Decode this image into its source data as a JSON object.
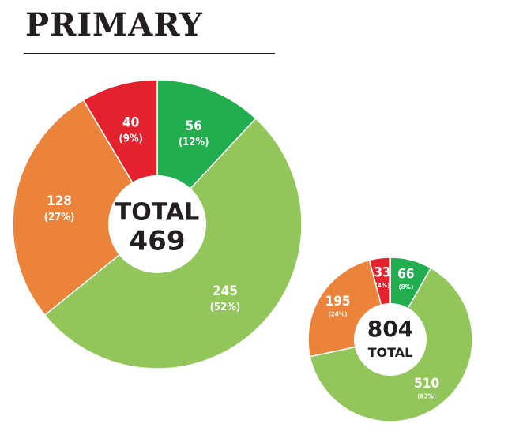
{
  "header": {
    "title": "PRIMARY"
  },
  "colors": {
    "green": "#22ad4f",
    "light_green": "#92c65a",
    "orange": "#eb833b",
    "red": "#e4222e",
    "text": "#231f20"
  },
  "chart_data": [
    {
      "type": "pie",
      "donut": true,
      "center_label": "TOTAL",
      "total": "469",
      "slices": [
        {
          "value": 56,
          "value_label": "56",
          "percent_label": "(12%)",
          "color": "#22ad4f"
        },
        {
          "value": 245,
          "value_label": "245",
          "percent_label": "(52%)",
          "color": "#92c65a"
        },
        {
          "value": 128,
          "value_label": "128",
          "percent_label": "(27%)",
          "color": "#eb833b"
        },
        {
          "value": 40,
          "value_label": "40",
          "percent_label": "(9%)",
          "color": "#e4222e"
        }
      ]
    },
    {
      "type": "pie",
      "donut": true,
      "center_label": "TOTAL",
      "total": "804",
      "slices": [
        {
          "value": 66,
          "value_label": "66",
          "percent_label": "(8%)",
          "color": "#22ad4f"
        },
        {
          "value": 510,
          "value_label": "510",
          "percent_label": "(63%)",
          "color": "#92c65a"
        },
        {
          "value": 195,
          "value_label": "195",
          "percent_label": "(24%)",
          "color": "#eb833b"
        },
        {
          "value": 33,
          "value_label": "33",
          "percent_label": "(4%)",
          "color": "#e4222e"
        }
      ]
    }
  ]
}
